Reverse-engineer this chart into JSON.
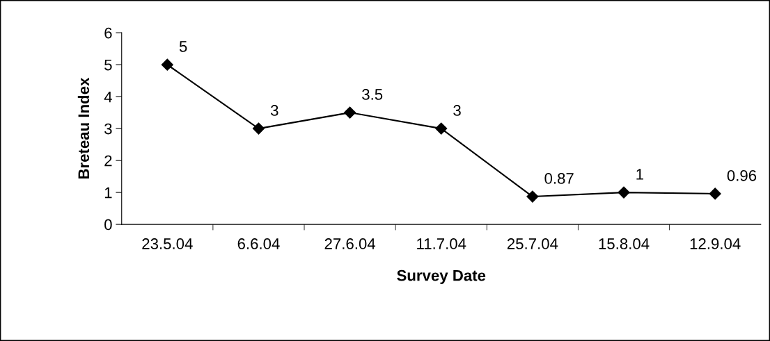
{
  "chart_data": {
    "type": "line",
    "xlabel": "Survey Date",
    "ylabel": "Breteau Index",
    "categories": [
      "23.5.04",
      "6.6.04",
      "27.6.04",
      "11.7.04",
      "25.7.04",
      "15.8.04",
      "12.9.04"
    ],
    "series": [
      {
        "color": "#000000",
        "values": [
          5,
          3,
          3.5,
          3,
          0.87,
          1,
          0.96
        ]
      }
    ],
    "ylim": [
      0,
      6
    ],
    "yticks": [
      0,
      1,
      2,
      3,
      4,
      5,
      6
    ],
    "marker": "diamond",
    "line_style": "solid",
    "data_labels": true,
    "grid": false,
    "legend": false
  }
}
